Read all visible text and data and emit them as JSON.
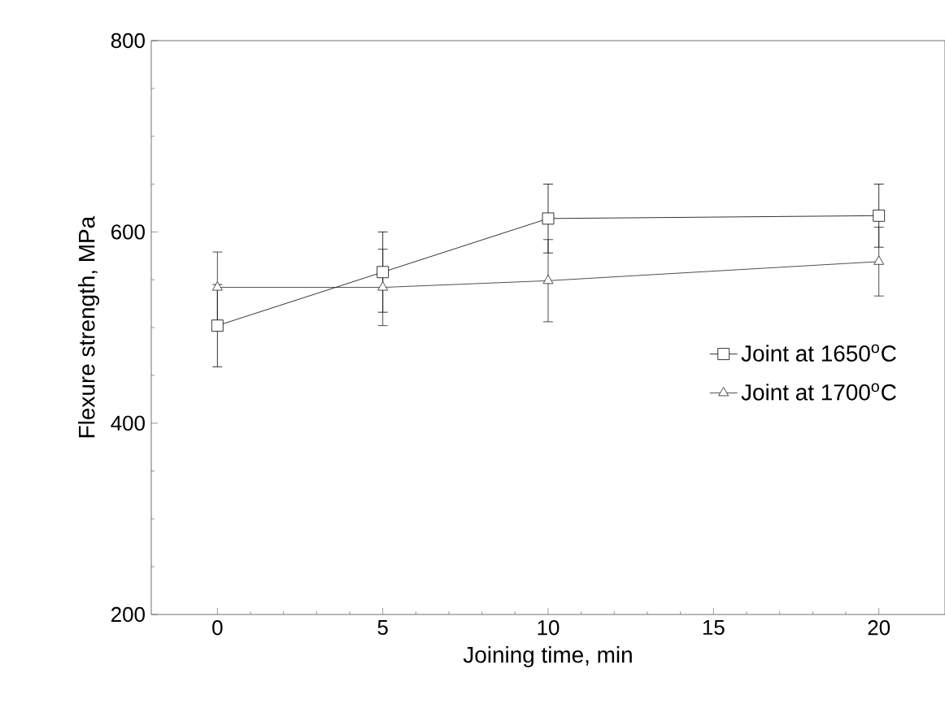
{
  "chart_data": {
    "type": "line",
    "xlabel": "Joining time, min",
    "ylabel": "Flexure strength, MPa",
    "x": [
      0,
      5,
      10,
      20
    ],
    "series": [
      {
        "name": "Joint at 1650$^{o}$C",
        "color": "#000000",
        "marker": "square",
        "values": [
          502,
          558,
          614,
          617
        ],
        "errors": [
          43,
          42,
          36,
          33
        ]
      },
      {
        "name": "Joint at 1700$^{o}$C",
        "color": "#222222",
        "marker": "triangle",
        "values": [
          542,
          542,
          549,
          569
        ],
        "errors": [
          37,
          40,
          43,
          36
        ]
      }
    ],
    "xlim": [
      -2,
      22
    ],
    "ylim": [
      200,
      800
    ],
    "xticks": [
      0,
      5,
      10,
      15,
      20
    ],
    "yticks": [
      200,
      400,
      600,
      800
    ],
    "legend": "right",
    "line_style": "solid",
    "grid": false
  }
}
